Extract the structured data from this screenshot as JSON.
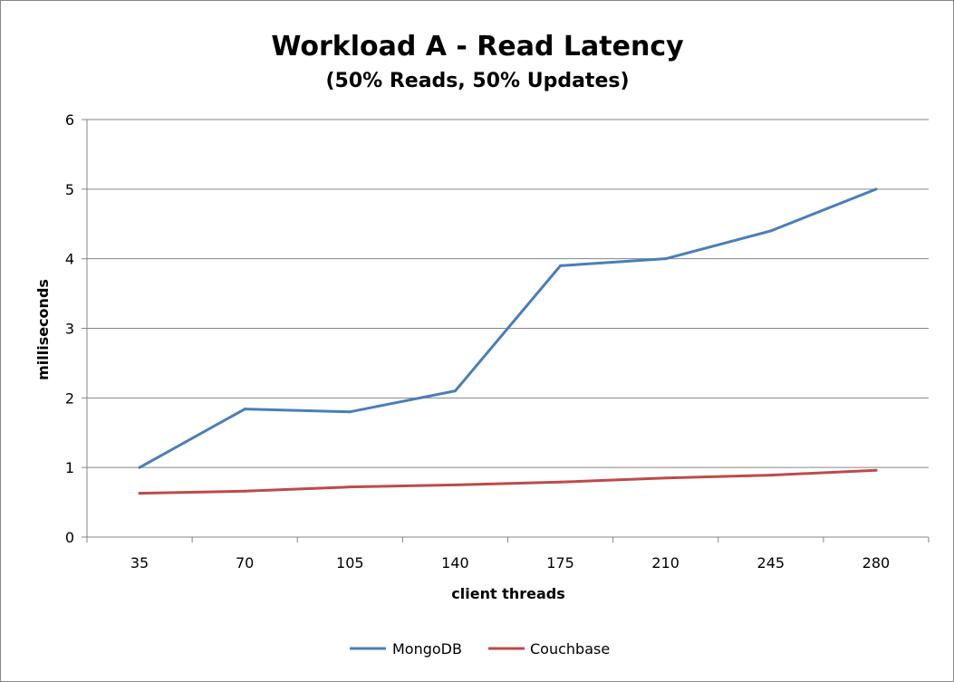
{
  "chart_data": {
    "type": "line",
    "title": "Workload A - Read Latency",
    "subtitle": "(50% Reads, 50% Updates)",
    "xlabel": "client threads",
    "ylabel": "milliseconds",
    "categories": [
      "35",
      "70",
      "105",
      "140",
      "175",
      "210",
      "245",
      "280"
    ],
    "ylim": [
      0,
      6
    ],
    "yticks": [
      "0",
      "1",
      "2",
      "3",
      "4",
      "5",
      "6"
    ],
    "grid": "horizontal",
    "legend_position": "bottom",
    "series": [
      {
        "name": "MongoDB",
        "color": "#4a7ebb",
        "values": [
          1.0,
          1.84,
          1.8,
          2.1,
          3.9,
          4.0,
          4.4,
          5.0
        ]
      },
      {
        "name": "Couchbase",
        "color": "#be4b48",
        "values": [
          0.63,
          0.66,
          0.72,
          0.75,
          0.79,
          0.85,
          0.89,
          0.96
        ]
      }
    ]
  }
}
